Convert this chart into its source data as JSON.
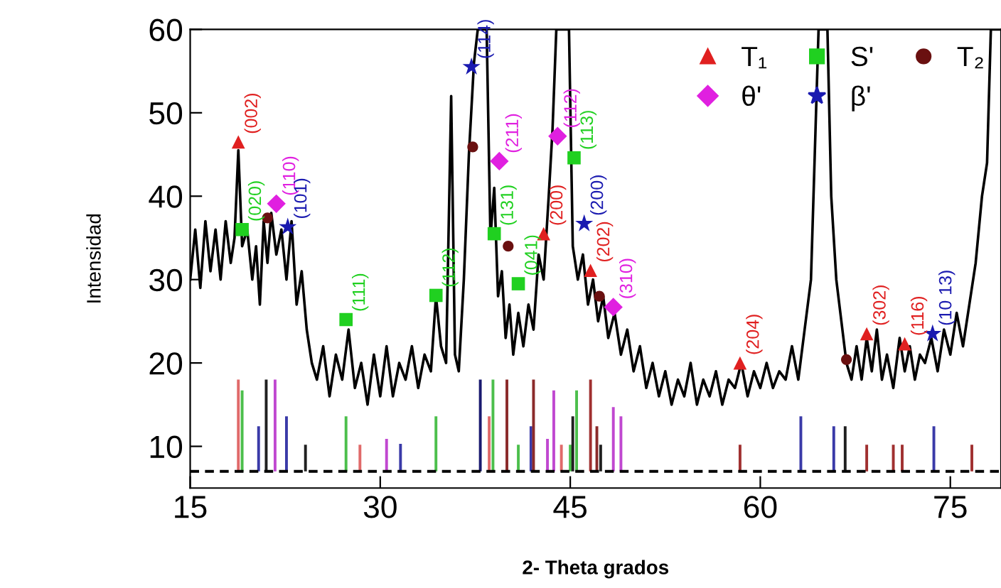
{
  "chart_data": {
    "type": "line",
    "xlabel": "2- Theta grados",
    "ylabel": "Intensidad",
    "xlim": [
      15,
      79
    ],
    "ylim": [
      5,
      60
    ],
    "xticks": [
      15,
      30,
      45,
      60,
      75
    ],
    "yticks": [
      10,
      20,
      30,
      40,
      50,
      60
    ],
    "grid": false,
    "legend": "top right",
    "ref_lines": [
      {
        "axis": "y",
        "value": 7,
        "color": "#000000",
        "line_style": "dashed"
      }
    ],
    "annotations": [
      {
        "text": "(002)",
        "x": 18.8,
        "y": 46.5
      },
      {
        "text": "(200)",
        "x": 42.9,
        "y": 35.5
      },
      {
        "text": "(202)",
        "x": 46.6,
        "y": 31.1
      },
      {
        "text": "(204)",
        "x": 58.4,
        "y": 20
      },
      {
        "text": "(302)",
        "x": 68.4,
        "y": 23.5
      },
      {
        "text": "(116)",
        "x": 71.4,
        "y": 22.3
      },
      {
        "text": "(020)",
        "x": 19.1,
        "y": 36
      },
      {
        "text": "(111)",
        "x": 27.3,
        "y": 25.2
      },
      {
        "text": "(112)",
        "x": 34.4,
        "y": 28.1
      },
      {
        "text": "(131)",
        "x": 39.0,
        "y": 35.5
      },
      {
        "text": "(041)",
        "x": 40.9,
        "y": 29.5
      },
      {
        "text": "(113)",
        "x": 45.3,
        "y": 44.6
      },
      {
        "text": "(110)",
        "x": 21.8,
        "y": 39.1
      },
      {
        "text": "(211)",
        "x": 39.4,
        "y": 44.2
      },
      {
        "text": "(112)",
        "x": 44.0,
        "y": 47.2
      },
      {
        "text": "(310)",
        "x": 48.4,
        "y": 26.7
      },
      {
        "text": "(101)",
        "x": 22.7,
        "y": 36.3
      },
      {
        "text": "(114)",
        "x": 37.2,
        "y": 55.5
      },
      {
        "text": "(200)",
        "x": 46.1,
        "y": 36.7
      },
      {
        "text": "(10 13)",
        "x": 73.6,
        "y": 23.5
      }
    ],
    "series": [
      {
        "type": "bar",
        "x": [
          18.8,
          19.1,
          20.4,
          21.0,
          21.7,
          22.6,
          24.1,
          27.3,
          28.4,
          30.5,
          31.6,
          34.4,
          37.9,
          38.6,
          38.9,
          40.0,
          40.9,
          41.9,
          42.1,
          43.2,
          43.7,
          44.3,
          45.0,
          45.2,
          45.5,
          46.6,
          47.1,
          47.4,
          48.4,
          49.0,
          58.4,
          63.2,
          65.8,
          66.7,
          68.4,
          70.5,
          71.2,
          73.7,
          76.7
        ],
        "base": [
          7,
          7,
          7,
          7,
          7,
          7,
          7,
          7,
          7,
          7,
          7,
          7,
          7,
          7,
          7,
          7,
          7,
          7,
          7,
          7,
          7,
          7,
          7,
          7,
          7,
          7,
          7,
          7,
          7,
          7,
          7,
          7,
          7,
          7,
          7,
          7,
          7,
          7,
          7
        ],
        "values": [
          11,
          9.7,
          5.4,
          11,
          11,
          6.6,
          3.2,
          6.6,
          3.2,
          3.9,
          3.3,
          6.6,
          11,
          6.6,
          11,
          11,
          3.2,
          5.4,
          11,
          3.9,
          9.7,
          3.2,
          3.2,
          6.6,
          9.7,
          11,
          5.4,
          3.2,
          7.7,
          6.6,
          3.2,
          6.6,
          5.4,
          5.4,
          3.2,
          3.2,
          3.2,
          5.4,
          3.2
        ],
        "colors": [
          "#e06a6a",
          "#4cbf4c",
          "#3a3aa8",
          "#202020",
          "#c048d0",
          "#3a3aa8",
          "#202020",
          "#4cbf4c",
          "#e06a6a",
          "#c048d0",
          "#3a3aa8",
          "#4cbf4c",
          "#1a1a70",
          "#e06a6a",
          "#4cbf4c",
          "#8b2a2a",
          "#4cbf4c",
          "#3a3aa8",
          "#8b2a2a",
          "#c048d0",
          "#c048d0",
          "#e06a6a",
          "#4cbf4c",
          "#202020",
          "#4cbf4c",
          "#a03030",
          "#8b2a2a",
          "#202020",
          "#c048d0",
          "#c048d0",
          "#a03030",
          "#3a3aa8",
          "#3a3aa8",
          "#202020",
          "#a03030",
          "#a03030",
          "#a03030",
          "#3a3aa8",
          "#a03030"
        ]
      },
      {
        "color": "#000000",
        "x": [
          15,
          15.4,
          15.8,
          16.2,
          16.6,
          17,
          17.4,
          17.8,
          18.2,
          18.5,
          18.8,
          19.1,
          19.5,
          19.9,
          20.2,
          20.5,
          20.8,
          21.1,
          21.4,
          21.8,
          22.2,
          22.6,
          23,
          23.4,
          23.8,
          24.2,
          24.6,
          25,
          25.5,
          26,
          26.5,
          27,
          27.5,
          28,
          28.5,
          29,
          29.5,
          30,
          30.5,
          31,
          31.5,
          32,
          32.5,
          33,
          33.5,
          34,
          34.4,
          34.8,
          35.2,
          35.6,
          35.9,
          36.2,
          36.6,
          37,
          37.4,
          37.7,
          38.4,
          38.7,
          39,
          39.3,
          39.6,
          39.9,
          40.2,
          40.5,
          40.9,
          41.3,
          41.7,
          42.1,
          42.5,
          42.9,
          43.3,
          43.6,
          43.9,
          44.9,
          45.2,
          45.6,
          46,
          46.4,
          46.8,
          47.2,
          47.6,
          48,
          48.5,
          49,
          49.5,
          50,
          50.5,
          51,
          51.5,
          52,
          52.5,
          53,
          53.5,
          54,
          54.5,
          55,
          55.5,
          56,
          56.5,
          57,
          57.5,
          58,
          58.5,
          59,
          59.5,
          60,
          60.5,
          61,
          61.5,
          62,
          62.5,
          63,
          63.5,
          64,
          64.3,
          64.6,
          65.3,
          65.6,
          66,
          66.4,
          66.8,
          67.2,
          67.6,
          68,
          68.4,
          68.8,
          69.2,
          69.6,
          70,
          70.5,
          71,
          71.4,
          71.8,
          72.2,
          72.6,
          73,
          73.5,
          74,
          74.5,
          75,
          75.5,
          76,
          76.5,
          77,
          77.5,
          77.9,
          78.2,
          79
        ],
        "values": [
          30,
          36,
          29,
          37,
          31,
          36,
          30,
          37,
          32,
          35,
          45.5,
          34,
          36,
          30,
          34,
          27,
          37,
          32,
          38,
          33,
          36,
          30,
          37,
          27,
          31,
          24,
          20,
          18,
          22,
          16,
          21,
          18,
          24,
          17,
          20,
          15,
          21,
          16,
          22,
          16,
          20,
          18,
          22,
          17,
          21,
          19,
          28,
          22,
          20,
          52,
          21,
          19,
          30,
          45,
          56,
          60,
          60,
          35,
          41,
          28,
          31,
          23,
          27,
          21,
          26,
          22,
          27,
          24,
          33,
          30,
          40,
          48,
          60,
          60,
          34,
          30,
          33,
          27,
          30,
          25,
          28,
          23,
          26,
          21,
          24,
          19,
          22,
          17,
          20,
          16,
          19,
          15,
          18,
          16,
          20,
          15,
          18,
          16,
          19,
          15,
          18,
          17,
          20,
          16,
          19,
          17,
          20,
          17,
          19,
          18,
          22,
          18,
          24,
          30,
          45,
          60,
          60,
          40,
          30,
          25,
          20,
          18,
          22,
          18,
          23,
          19,
          24,
          18,
          21,
          17,
          23,
          19,
          22,
          18,
          21,
          20,
          23,
          19,
          24,
          21,
          26,
          22,
          27,
          32,
          40,
          44,
          60,
          60
        ]
      },
      {
        "type": "scatter",
        "name": "T₁",
        "color": "#e02020",
        "marker": "triangle",
        "x": [
          18.8,
          42.9,
          46.6,
          58.4,
          68.4,
          71.4
        ],
        "values": [
          46.5,
          35.5,
          31.1,
          20,
          23.5,
          22.3
        ]
      },
      {
        "type": "scatter",
        "name": "S'",
        "color": "#20d020",
        "marker": "square",
        "x": [
          19.1,
          27.3,
          34.4,
          39.0,
          40.9,
          45.3
        ],
        "values": [
          36,
          25.2,
          28.1,
          35.5,
          29.5,
          44.6
        ]
      },
      {
        "type": "scatter",
        "name": "T₂",
        "color": "#6a1010",
        "marker": "circle",
        "x": [
          21.1,
          37.3,
          40.1,
          47.3,
          66.8
        ],
        "values": [
          37.4,
          45.9,
          34,
          28,
          20.4
        ]
      },
      {
        "type": "scatter",
        "name": "θ'",
        "color": "#e020e0",
        "marker": "diamond",
        "x": [
          21.8,
          39.4,
          44.0,
          48.4
        ],
        "values": [
          39.1,
          44.2,
          47.2,
          26.7
        ]
      },
      {
        "type": "scatter",
        "name": "β'",
        "color": "#1a1ab0",
        "marker": "star",
        "x": [
          22.7,
          37.2,
          46.1,
          73.6
        ],
        "values": [
          36.3,
          55.5,
          36.7,
          23.5
        ]
      }
    ]
  }
}
